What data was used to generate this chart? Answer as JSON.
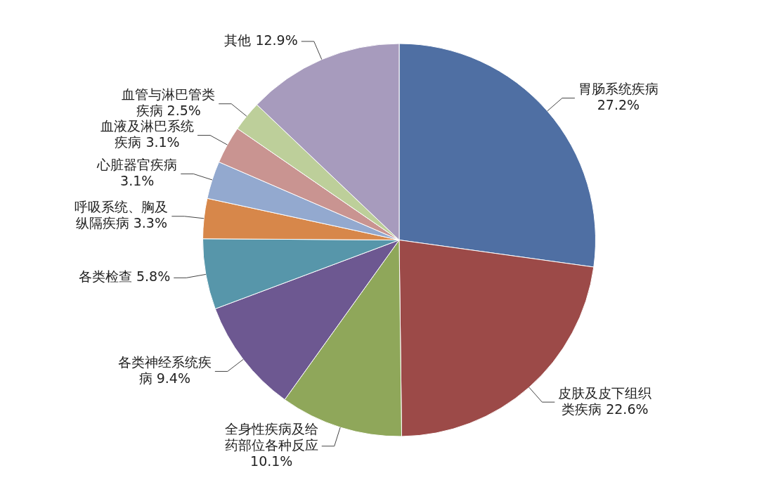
{
  "chart_data": {
    "type": "pie",
    "categories": [
      "胃肠系统疾病",
      "皮肤及皮下组织类疾病",
      "全身性疾病及给药部位各种反应",
      "各类神经系统疾病",
      "各类检查",
      "呼吸系统、胸及纵隔疾病",
      "心脏器官疾病",
      "血液及淋巴系统疾病",
      "血管与淋巴管类疾病",
      "其他"
    ],
    "values": [
      27.2,
      22.6,
      10.1,
      9.4,
      5.8,
      3.3,
      3.1,
      3.1,
      2.5,
      12.9
    ],
    "value_labels": [
      "27.2%",
      "22.6%",
      "10.1%",
      "9.4%",
      "5.8%",
      "3.3%",
      "3.1%",
      "3.1%",
      "2.5%",
      "12.9%"
    ],
    "colors": [
      "#4f6fa3",
      "#9c4a48",
      "#8fa75a",
      "#6d5891",
      "#5796aa",
      "#d7874a",
      "#93a9cf",
      "#c99491",
      "#bdcf9a",
      "#a79bbd"
    ],
    "legend": false
  }
}
